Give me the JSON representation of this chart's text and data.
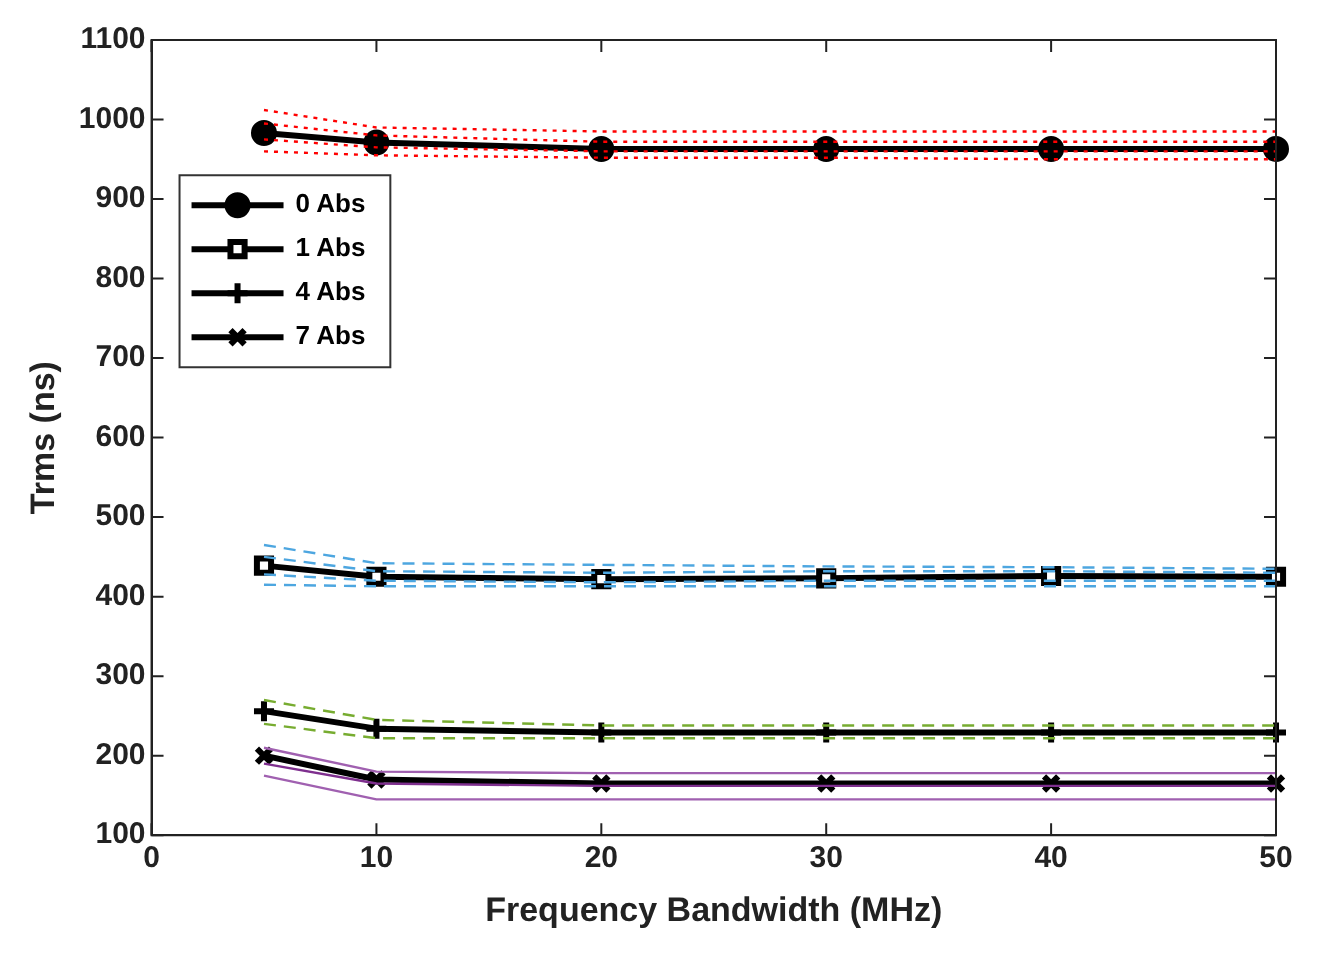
{
  "chart_data": {
    "type": "line",
    "xlabel": "Frequency Bandwidth (MHz)",
    "ylabel": "Trms (ns)",
    "x": [
      5,
      10,
      20,
      30,
      40,
      50
    ],
    "xlim": [
      0,
      50
    ],
    "xticks": [
      0,
      10,
      20,
      30,
      40,
      50
    ],
    "ylim": [
      100,
      1100
    ],
    "yticks": [
      100,
      200,
      300,
      400,
      500,
      600,
      700,
      800,
      900,
      1000,
      1100
    ],
    "grid": false,
    "legend": "top left",
    "series": [
      {
        "color": "#ff0000",
        "line_style": "dotted",
        "marker": "none",
        "values": [
          1012,
          990,
          985,
          985,
          985,
          985
        ]
      },
      {
        "color": "#ff0000",
        "line_style": "dotted",
        "marker": "none",
        "values": [
          995,
          980,
          972,
          972,
          972,
          972
        ]
      },
      {
        "color": "#ff0000",
        "line_style": "dotted",
        "marker": "none",
        "values": [
          975,
          965,
          960,
          960,
          960,
          960
        ]
      },
      {
        "color": "#ff0000",
        "line_style": "dotted",
        "marker": "none",
        "values": [
          960,
          955,
          952,
          952,
          950,
          950
        ]
      },
      {
        "color": "#4da6e0",
        "line_style": "dashed",
        "marker": "none",
        "values": [
          465,
          442,
          440,
          438,
          437,
          435
        ]
      },
      {
        "color": "#4da6e0",
        "line_style": "dashed",
        "marker": "none",
        "values": [
          450,
          432,
          430,
          432,
          432,
          430
        ]
      },
      {
        "color": "#4da6e0",
        "line_style": "dashed",
        "marker": "none",
        "values": [
          428,
          420,
          418,
          420,
          420,
          420
        ]
      },
      {
        "color": "#4da6e0",
        "line_style": "dashed",
        "marker": "none",
        "values": [
          415,
          413,
          413,
          413,
          413,
          413
        ]
      },
      {
        "color": "#77ac30",
        "line_style": "dashed",
        "marker": "none",
        "values": [
          270,
          245,
          238,
          238,
          238,
          238
        ]
      },
      {
        "color": "#77ac30",
        "line_style": "dashed",
        "marker": "none",
        "values": [
          240,
          222,
          222,
          222,
          222,
          222
        ]
      },
      {
        "color": "#a060b0",
        "line_style": "solid",
        "marker": "none",
        "values": [
          210,
          180,
          178,
          178,
          178,
          178
        ]
      },
      {
        "color": "#7e2f8e",
        "line_style": "solid",
        "marker": "none",
        "values": [
          190,
          165,
          162,
          162,
          162,
          162
        ]
      },
      {
        "color": "#a060b0",
        "line_style": "solid",
        "marker": "none",
        "values": [
          175,
          145,
          145,
          145,
          145,
          145
        ]
      },
      {
        "name": "0 Abs",
        "color": "#000000",
        "line_style": "solid",
        "marker": "circle",
        "values": [
          983,
          971,
          963,
          963,
          963,
          963
        ]
      },
      {
        "name": "1 Abs",
        "color": "#000000",
        "line_style": "solid",
        "marker": "square",
        "values": [
          439,
          425,
          422,
          423,
          426,
          425
        ]
      },
      {
        "name": "4 Abs",
        "color": "#000000",
        "line_style": "solid",
        "marker": "plus",
        "values": [
          256,
          234,
          229,
          229,
          229,
          229
        ]
      },
      {
        "name": "7 Abs",
        "color": "#000000",
        "line_style": "solid",
        "marker": "cross",
        "values": [
          200,
          170,
          165,
          165,
          165,
          165
        ]
      }
    ]
  }
}
